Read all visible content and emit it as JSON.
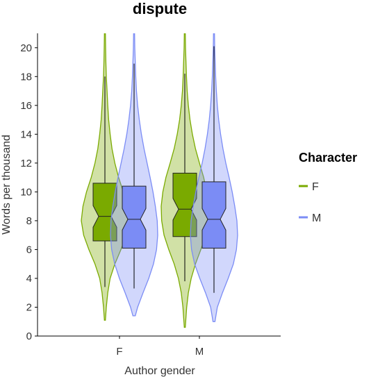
{
  "chart_data": {
    "type": "violin-box",
    "title": "dispute",
    "xlabel": "Author gender",
    "ylabel": "Words per thousand",
    "categories": [
      "F",
      "M"
    ],
    "ylim": [
      0,
      21
    ],
    "yticks": [
      0,
      2,
      4,
      6,
      8,
      10,
      12,
      14,
      16,
      18,
      20
    ],
    "grid": false,
    "legend": {
      "title": "Character",
      "position": "right",
      "entries": [
        "F",
        "M"
      ]
    },
    "colors": {
      "F": "#7aaa00",
      "M": "#7b8cf5"
    },
    "series": [
      {
        "name": "F",
        "groups": [
          {
            "category": "F",
            "min": 1.1,
            "q1": 6.6,
            "median": 8.3,
            "q3": 10.6,
            "max": 21,
            "whisker_low": 3.4,
            "whisker_high": 18.0,
            "density": [
              [
                1.1,
                0.02
              ],
              [
                2,
                0.06
              ],
              [
                3,
                0.12
              ],
              [
                4,
                0.22
              ],
              [
                5,
                0.42
              ],
              [
                6,
                0.68
              ],
              [
                7,
                0.9
              ],
              [
                8,
                1.0
              ],
              [
                9,
                0.93
              ],
              [
                10,
                0.78
              ],
              [
                11,
                0.58
              ],
              [
                12,
                0.42
              ],
              [
                13,
                0.3
              ],
              [
                14,
                0.22
              ],
              [
                15,
                0.16
              ],
              [
                16,
                0.12
              ],
              [
                17,
                0.09
              ],
              [
                18,
                0.06
              ],
              [
                19,
                0.04
              ],
              [
                20,
                0.03
              ],
              [
                21,
                0.02
              ]
            ]
          },
          {
            "category": "M",
            "min": 0.6,
            "q1": 6.9,
            "median": 8.8,
            "q3": 11.3,
            "max": 21,
            "whisker_low": 3.8,
            "whisker_high": 18.2,
            "density": [
              [
                0.6,
                0.02
              ],
              [
                2,
                0.08
              ],
              [
                3,
                0.15
              ],
              [
                4,
                0.27
              ],
              [
                5,
                0.45
              ],
              [
                6,
                0.68
              ],
              [
                7,
                0.88
              ],
              [
                8,
                0.98
              ],
              [
                9,
                1.0
              ],
              [
                10,
                0.93
              ],
              [
                11,
                0.8
              ],
              [
                12,
                0.62
              ],
              [
                13,
                0.45
              ],
              [
                14,
                0.32
              ],
              [
                15,
                0.22
              ],
              [
                16,
                0.15
              ],
              [
                17,
                0.1
              ],
              [
                18,
                0.07
              ],
              [
                19,
                0.05
              ],
              [
                20,
                0.03
              ],
              [
                21,
                0.02
              ]
            ]
          }
        ]
      },
      {
        "name": "M",
        "groups": [
          {
            "category": "F",
            "min": 1.4,
            "q1": 6.1,
            "median": 8.1,
            "q3": 10.4,
            "max": 21,
            "whisker_low": 3.3,
            "whisker_high": 18.9,
            "density": [
              [
                1.4,
                0.05
              ],
              [
                2,
                0.15
              ],
              [
                3,
                0.38
              ],
              [
                4,
                0.62
              ],
              [
                5,
                0.82
              ],
              [
                6,
                0.95
              ],
              [
                7,
                1.0
              ],
              [
                8,
                0.98
              ],
              [
                9,
                0.9
              ],
              [
                10,
                0.8
              ],
              [
                11,
                0.68
              ],
              [
                12,
                0.55
              ],
              [
                13,
                0.42
              ],
              [
                14,
                0.31
              ],
              [
                15,
                0.22
              ],
              [
                16,
                0.15
              ],
              [
                17,
                0.1
              ],
              [
                18,
                0.07
              ],
              [
                19,
                0.05
              ],
              [
                20,
                0.03
              ],
              [
                21,
                0.02
              ]
            ]
          },
          {
            "category": "M",
            "min": 1.0,
            "q1": 6.1,
            "median": 8.1,
            "q3": 10.7,
            "max": 21,
            "whisker_low": 3.0,
            "whisker_high": 20.1,
            "density": [
              [
                1.0,
                0.04
              ],
              [
                2,
                0.14
              ],
              [
                3,
                0.36
              ],
              [
                4,
                0.6
              ],
              [
                5,
                0.82
              ],
              [
                6,
                0.95
              ],
              [
                7,
                1.0
              ],
              [
                8,
                0.97
              ],
              [
                9,
                0.88
              ],
              [
                10,
                0.77
              ],
              [
                11,
                0.64
              ],
              [
                12,
                0.5
              ],
              [
                13,
                0.38
              ],
              [
                14,
                0.28
              ],
              [
                15,
                0.2
              ],
              [
                16,
                0.14
              ],
              [
                17,
                0.1
              ],
              [
                18,
                0.07
              ],
              [
                19,
                0.05
              ],
              [
                20,
                0.03
              ],
              [
                21,
                0.02
              ]
            ]
          }
        ]
      }
    ]
  }
}
